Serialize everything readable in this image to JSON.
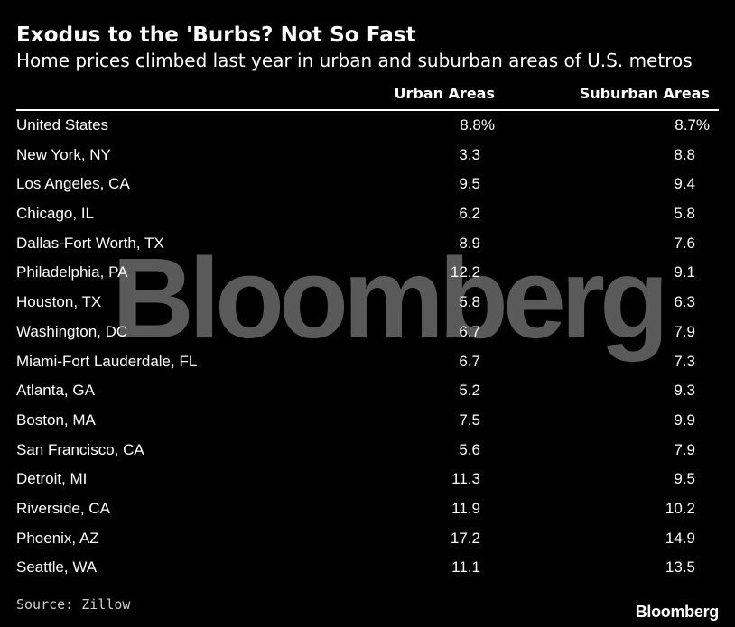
{
  "title": "Exodus to the 'Burbs? Not So Fast",
  "subtitle": "Home prices climbed last year in urban and suburban areas of U.S. metros",
  "watermark": "Bloomberg",
  "source": "Source: Zillow",
  "brand": "Bloomberg",
  "colors": {
    "background": "#000000",
    "text": "#ffffff",
    "watermark": "#5a5a5a"
  },
  "chart_data": {
    "type": "table",
    "title": "Exodus to the 'Burbs? Not So Fast",
    "subtitle": "Home prices climbed last year in urban and suburban areas of U.S. metros",
    "columns": [
      "Urban Areas",
      "Suburban Areas"
    ],
    "rows": [
      {
        "name": "United States",
        "urban": "8.8%",
        "suburban": "8.7%"
      },
      {
        "name": "New York, NY",
        "urban": "3.3",
        "suburban": "8.8"
      },
      {
        "name": "Los Angeles, CA",
        "urban": "9.5",
        "suburban": "9.4"
      },
      {
        "name": "Chicago, IL",
        "urban": "6.2",
        "suburban": "5.8"
      },
      {
        "name": "Dallas-Fort Worth, TX",
        "urban": "8.9",
        "suburban": "7.6"
      },
      {
        "name": "Philadelphia, PA",
        "urban": "12.2",
        "suburban": "9.1"
      },
      {
        "name": "Houston, TX",
        "urban": "5.8",
        "suburban": "6.3"
      },
      {
        "name": "Washington, DC",
        "urban": "6.7",
        "suburban": "7.9"
      },
      {
        "name": "Miami-Fort Lauderdale, FL",
        "urban": "6.7",
        "suburban": "7.3"
      },
      {
        "name": "Atlanta, GA",
        "urban": "5.2",
        "suburban": "9.3"
      },
      {
        "name": "Boston, MA",
        "urban": "7.5",
        "suburban": "9.9"
      },
      {
        "name": "San Francisco, CA",
        "urban": "5.6",
        "suburban": "7.9"
      },
      {
        "name": "Detroit, MI",
        "urban": "11.3",
        "suburban": "9.5"
      },
      {
        "name": "Riverside, CA",
        "urban": "11.9",
        "suburban": "10.2"
      },
      {
        "name": "Phoenix, AZ",
        "urban": "17.2",
        "suburban": "14.9"
      },
      {
        "name": "Seattle, WA",
        "urban": "11.1",
        "suburban": "13.5"
      }
    ],
    "source": "Source: Zillow"
  }
}
